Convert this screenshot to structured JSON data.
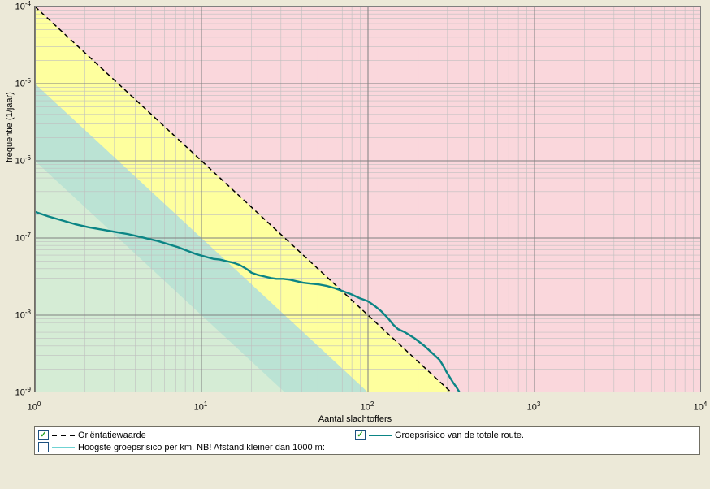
{
  "chart": {
    "type": "line-loglog",
    "background_color": "#ece9d8",
    "plot_bg": "#ffffff",
    "pink_fill": "#fad7dc",
    "yellow_fill": "#feff9e",
    "bluegreen_fill": "#bbe3d4",
    "green_fill": "#d5ecd5",
    "grid_color": "#7f7f7f",
    "minor_grid_color": "#bfbfbf",
    "border_color": "#716f64",
    "axis": {
      "x": {
        "label": "Aantal slachtoffers",
        "min_exp": 0,
        "max_exp": 4,
        "major_exps": [
          0,
          1,
          2,
          3,
          4
        ]
      },
      "y": {
        "label": "frequentie (1/jaar)",
        "min_exp": -9,
        "max_exp": -4,
        "major_exps": [
          -4,
          -5,
          -6,
          -7,
          -8,
          -9
        ]
      }
    },
    "orient_line": {
      "start_xexp": 0,
      "start_yexp": -4,
      "end_xexp": 2.5,
      "end_yexp": -9,
      "color": "#000000",
      "dash": true,
      "width": 1.5
    },
    "series_color": "#0b8585",
    "series_width": 2.4,
    "series": [
      [
        0.0,
        -6.66
      ],
      [
        0.08,
        -6.72
      ],
      [
        0.16,
        -6.77
      ],
      [
        0.24,
        -6.82
      ],
      [
        0.32,
        -6.86
      ],
      [
        0.4,
        -6.89
      ],
      [
        0.48,
        -6.92
      ],
      [
        0.56,
        -6.95
      ],
      [
        0.62,
        -6.98
      ],
      [
        0.68,
        -7.01
      ],
      [
        0.74,
        -7.04
      ],
      [
        0.8,
        -7.08
      ],
      [
        0.86,
        -7.12
      ],
      [
        0.92,
        -7.17
      ],
      [
        0.97,
        -7.21
      ],
      [
        1.02,
        -7.24
      ],
      [
        1.07,
        -7.27
      ],
      [
        1.11,
        -7.28
      ],
      [
        1.15,
        -7.3
      ],
      [
        1.19,
        -7.32
      ],
      [
        1.23,
        -7.35
      ],
      [
        1.27,
        -7.4
      ],
      [
        1.3,
        -7.45
      ],
      [
        1.34,
        -7.48
      ],
      [
        1.38,
        -7.5
      ],
      [
        1.42,
        -7.52
      ],
      [
        1.45,
        -7.53
      ],
      [
        1.49,
        -7.53
      ],
      [
        1.53,
        -7.54
      ],
      [
        1.57,
        -7.56
      ],
      [
        1.61,
        -7.58
      ],
      [
        1.65,
        -7.59
      ],
      [
        1.7,
        -7.6
      ],
      [
        1.75,
        -7.62
      ],
      [
        1.8,
        -7.65
      ],
      [
        1.85,
        -7.69
      ],
      [
        1.9,
        -7.73
      ],
      [
        1.95,
        -7.78
      ],
      [
        2.0,
        -7.82
      ],
      [
        2.04,
        -7.88
      ],
      [
        2.08,
        -7.95
      ],
      [
        2.12,
        -8.04
      ],
      [
        2.15,
        -8.12
      ],
      [
        2.18,
        -8.18
      ],
      [
        2.22,
        -8.22
      ],
      [
        2.25,
        -8.26
      ],
      [
        2.28,
        -8.3
      ],
      [
        2.31,
        -8.35
      ],
      [
        2.34,
        -8.4
      ],
      [
        2.37,
        -8.46
      ],
      [
        2.4,
        -8.52
      ],
      [
        2.43,
        -8.58
      ],
      [
        2.45,
        -8.65
      ],
      [
        2.47,
        -8.73
      ],
      [
        2.49,
        -8.8
      ],
      [
        2.51,
        -8.87
      ],
      [
        2.53,
        -8.93
      ],
      [
        2.55,
        -9.0
      ]
    ]
  },
  "legend": {
    "items": [
      {
        "checked": true,
        "style": "dash",
        "color": "#000000",
        "label": "Oriëntatiewaarde"
      },
      {
        "checked": true,
        "style": "solid",
        "color": "#0b8585",
        "label": "Groepsrisico van de totale route."
      },
      {
        "checked": false,
        "style": "solid",
        "color": "#6fd3d3",
        "label": "Hoogste groepsrisico per km. NB! Afstand kleiner dan 1000 m:"
      }
    ]
  }
}
